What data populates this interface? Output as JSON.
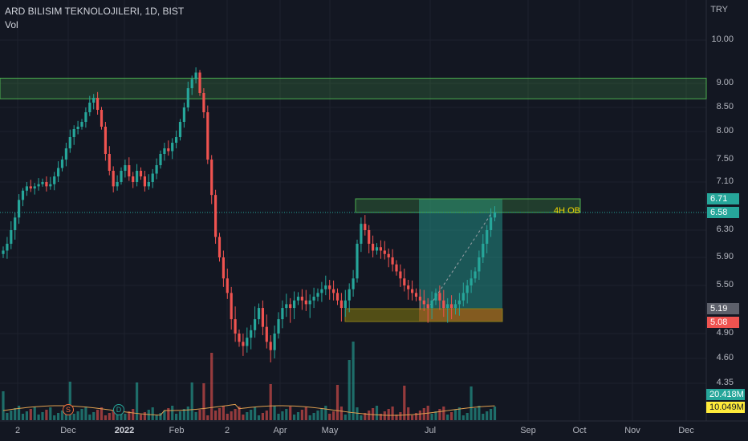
{
  "header": {
    "symbol_line": "ARD BILISIM TEKNOLOJILERI, 1D, BIST",
    "indicator": "Vol"
  },
  "currency": "TRY",
  "price_axis": [
    {
      "label": "10.00",
      "value": 10.0
    },
    {
      "label": "9.00",
      "value": 9.0
    },
    {
      "label": "8.50",
      "value": 8.5
    },
    {
      "label": "8.00",
      "value": 8.0
    },
    {
      "label": "7.50",
      "value": 7.5
    },
    {
      "label": "7.10",
      "value": 7.1
    },
    {
      "label": "6.30",
      "value": 6.3
    },
    {
      "label": "5.90",
      "value": 5.9
    },
    {
      "label": "5.50",
      "value": 5.5
    },
    {
      "label": "4.90",
      "value": 4.9
    },
    {
      "label": "4.60",
      "value": 4.6
    },
    {
      "label": "4.35",
      "value": 4.35
    }
  ],
  "price_tags": [
    {
      "label": "6.71",
      "value": 6.71,
      "bg": "#26a69a",
      "fg": "#ffffff"
    },
    {
      "label": "6.58",
      "value": 6.58,
      "bg": "#26a69a",
      "fg": "#ffffff"
    },
    {
      "label": "5.19",
      "value": 5.19,
      "bg": "#5d606b",
      "fg": "#ffffff"
    },
    {
      "label": "5.08",
      "value": 5.08,
      "bg": "#ef5350",
      "fg": "#ffffff"
    },
    {
      "label": "20.418M",
      "bg": "#26a69a",
      "fg": "#ffffff"
    },
    {
      "label": "10.049M",
      "bg": "#ffeb3b",
      "fg": "#131722"
    }
  ],
  "time_axis": [
    {
      "label": "2",
      "bold": false
    },
    {
      "label": "Dec",
      "bold": false
    },
    {
      "label": "2022",
      "bold": true
    },
    {
      "label": "Feb",
      "bold": false
    },
    {
      "label": "2",
      "bold": false
    },
    {
      "label": "Apr",
      "bold": false
    },
    {
      "label": "May",
      "bold": false
    },
    {
      "label": "Jul",
      "bold": false
    },
    {
      "label": "Sep",
      "bold": false
    },
    {
      "label": "Oct",
      "bold": false
    },
    {
      "label": "Nov",
      "bold": false
    },
    {
      "label": "Dec",
      "bold": false
    }
  ],
  "annotations": {
    "order_block_label": "4H OB"
  },
  "markers": [
    {
      "label": "S",
      "color": "#ef6c3a"
    },
    {
      "label": "D",
      "color": "#26a69a"
    }
  ],
  "chart_data": {
    "type": "candlestick",
    "price_range": [
      4.3,
      10.4
    ],
    "zones": [
      {
        "name": "supply-zone",
        "from": 8.68,
        "to": 9.12,
        "color": "#4caf50"
      },
      {
        "name": "4H OB",
        "from": 6.58,
        "to": 6.71,
        "color": "#4caf50"
      },
      {
        "name": "demand-zone",
        "from": 5.08,
        "to": 5.19,
        "color": "#c8b400"
      }
    ],
    "position": {
      "entry": 5.19,
      "target": 6.71,
      "stop": 5.08
    },
    "close_series": [
      6.0,
      6.1,
      6.3,
      6.5,
      6.7,
      6.9,
      7.0,
      6.95,
      7.0,
      7.05,
      7.1,
      7.0,
      7.05,
      7.2,
      7.35,
      7.5,
      7.7,
      7.9,
      8.05,
      8.1,
      8.2,
      8.4,
      8.6,
      8.7,
      8.45,
      8.1,
      7.6,
      7.3,
      7.0,
      7.1,
      7.3,
      7.4,
      7.2,
      7.1,
      7.3,
      7.2,
      7.0,
      7.1,
      7.25,
      7.4,
      7.6,
      7.7,
      7.65,
      7.8,
      7.9,
      8.2,
      8.5,
      8.9,
      9.1,
      9.25,
      8.8,
      8.4,
      7.5,
      6.8,
      6.2,
      5.9,
      5.6,
      5.4,
      5.1,
      4.9,
      4.8,
      4.75,
      4.85,
      4.95,
      5.1,
      5.2,
      5.0,
      4.8,
      4.7,
      4.9,
      5.1,
      5.2,
      5.25,
      5.2,
      5.3,
      5.35,
      5.3,
      5.25,
      5.3,
      5.35,
      5.4,
      5.45,
      5.5,
      5.45,
      5.4,
      5.3,
      5.2,
      5.3,
      5.45,
      5.6,
      6.1,
      6.4,
      6.3,
      6.1,
      6.0,
      6.05,
      6.0,
      5.95,
      5.9,
      5.8,
      5.7,
      5.6,
      5.5,
      5.45,
      5.4,
      5.35,
      5.3,
      5.25,
      5.2,
      5.3,
      5.4,
      5.3,
      5.2,
      5.25,
      5.2,
      5.25,
      5.3,
      5.4,
      5.5,
      5.6,
      5.7,
      5.9,
      6.1,
      6.3,
      6.5,
      6.58
    ]
  }
}
